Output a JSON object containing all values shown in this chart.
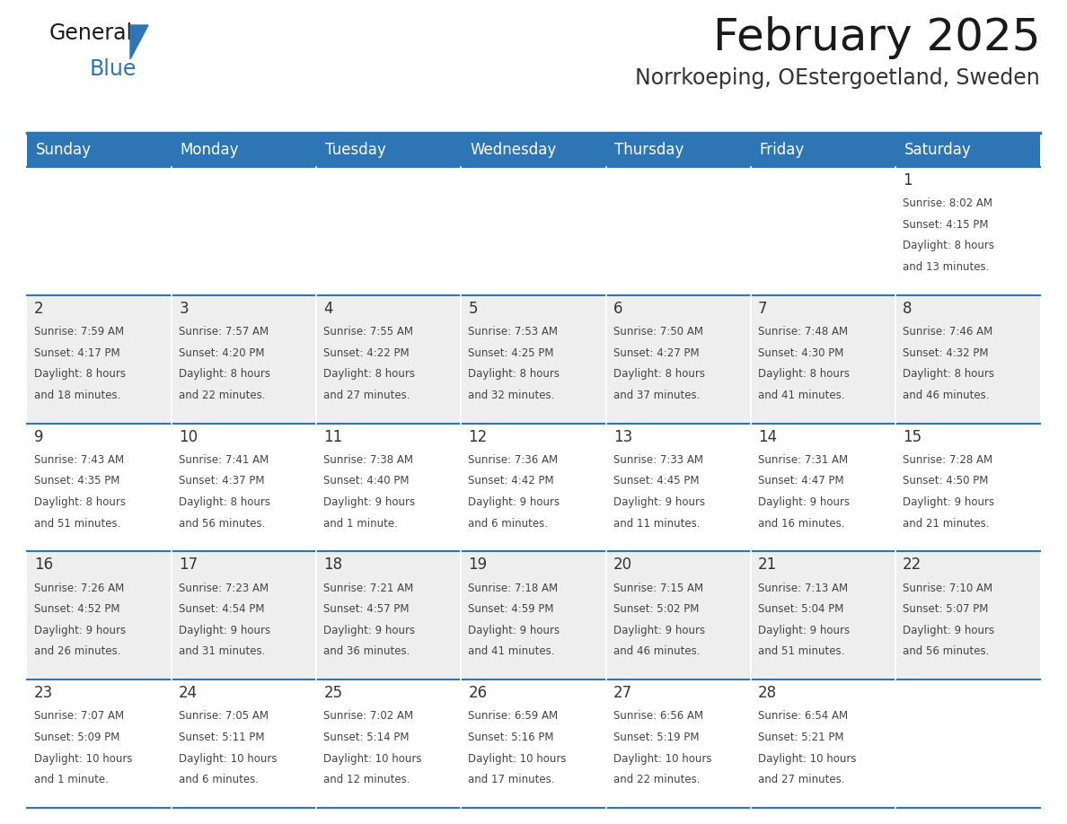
{
  "title": "February 2025",
  "subtitle": "Norrkoeping, OEstergoetland, Sweden",
  "days_of_week": [
    "Sunday",
    "Monday",
    "Tuesday",
    "Wednesday",
    "Thursday",
    "Friday",
    "Saturday"
  ],
  "header_bg": "#2e75b6",
  "header_text_color": "#ffffff",
  "row_bg": [
    "#ffffff",
    "#eeeeee",
    "#ffffff",
    "#eeeeee",
    "#ffffff"
  ],
  "border_color": "#2e75b6",
  "text_color": "#444444",
  "day_number_color": "#333333",
  "title_color": "#1a1a1a",
  "subtitle_color": "#333333",
  "calendar_data": [
    [
      null,
      null,
      null,
      null,
      null,
      null,
      {
        "day": 1,
        "sunrise": "8:02 AM",
        "sunset": "4:15 PM",
        "daylight": "8 hours",
        "daylight2": "and 13 minutes."
      }
    ],
    [
      {
        "day": 2,
        "sunrise": "7:59 AM",
        "sunset": "4:17 PM",
        "daylight": "8 hours",
        "daylight2": "and 18 minutes."
      },
      {
        "day": 3,
        "sunrise": "7:57 AM",
        "sunset": "4:20 PM",
        "daylight": "8 hours",
        "daylight2": "and 22 minutes."
      },
      {
        "day": 4,
        "sunrise": "7:55 AM",
        "sunset": "4:22 PM",
        "daylight": "8 hours",
        "daylight2": "and 27 minutes."
      },
      {
        "day": 5,
        "sunrise": "7:53 AM",
        "sunset": "4:25 PM",
        "daylight": "8 hours",
        "daylight2": "and 32 minutes."
      },
      {
        "day": 6,
        "sunrise": "7:50 AM",
        "sunset": "4:27 PM",
        "daylight": "8 hours",
        "daylight2": "and 37 minutes."
      },
      {
        "day": 7,
        "sunrise": "7:48 AM",
        "sunset": "4:30 PM",
        "daylight": "8 hours",
        "daylight2": "and 41 minutes."
      },
      {
        "day": 8,
        "sunrise": "7:46 AM",
        "sunset": "4:32 PM",
        "daylight": "8 hours",
        "daylight2": "and 46 minutes."
      }
    ],
    [
      {
        "day": 9,
        "sunrise": "7:43 AM",
        "sunset": "4:35 PM",
        "daylight": "8 hours",
        "daylight2": "and 51 minutes."
      },
      {
        "day": 10,
        "sunrise": "7:41 AM",
        "sunset": "4:37 PM",
        "daylight": "8 hours",
        "daylight2": "and 56 minutes."
      },
      {
        "day": 11,
        "sunrise": "7:38 AM",
        "sunset": "4:40 PM",
        "daylight": "9 hours",
        "daylight2": "and 1 minute."
      },
      {
        "day": 12,
        "sunrise": "7:36 AM",
        "sunset": "4:42 PM",
        "daylight": "9 hours",
        "daylight2": "and 6 minutes."
      },
      {
        "day": 13,
        "sunrise": "7:33 AM",
        "sunset": "4:45 PM",
        "daylight": "9 hours",
        "daylight2": "and 11 minutes."
      },
      {
        "day": 14,
        "sunrise": "7:31 AM",
        "sunset": "4:47 PM",
        "daylight": "9 hours",
        "daylight2": "and 16 minutes."
      },
      {
        "day": 15,
        "sunrise": "7:28 AM",
        "sunset": "4:50 PM",
        "daylight": "9 hours",
        "daylight2": "and 21 minutes."
      }
    ],
    [
      {
        "day": 16,
        "sunrise": "7:26 AM",
        "sunset": "4:52 PM",
        "daylight": "9 hours",
        "daylight2": "and 26 minutes."
      },
      {
        "day": 17,
        "sunrise": "7:23 AM",
        "sunset": "4:54 PM",
        "daylight": "9 hours",
        "daylight2": "and 31 minutes."
      },
      {
        "day": 18,
        "sunrise": "7:21 AM",
        "sunset": "4:57 PM",
        "daylight": "9 hours",
        "daylight2": "and 36 minutes."
      },
      {
        "day": 19,
        "sunrise": "7:18 AM",
        "sunset": "4:59 PM",
        "daylight": "9 hours",
        "daylight2": "and 41 minutes."
      },
      {
        "day": 20,
        "sunrise": "7:15 AM",
        "sunset": "5:02 PM",
        "daylight": "9 hours",
        "daylight2": "and 46 minutes."
      },
      {
        "day": 21,
        "sunrise": "7:13 AM",
        "sunset": "5:04 PM",
        "daylight": "9 hours",
        "daylight2": "and 51 minutes."
      },
      {
        "day": 22,
        "sunrise": "7:10 AM",
        "sunset": "5:07 PM",
        "daylight": "9 hours",
        "daylight2": "and 56 minutes."
      }
    ],
    [
      {
        "day": 23,
        "sunrise": "7:07 AM",
        "sunset": "5:09 PM",
        "daylight": "10 hours",
        "daylight2": "and 1 minute."
      },
      {
        "day": 24,
        "sunrise": "7:05 AM",
        "sunset": "5:11 PM",
        "daylight": "10 hours",
        "daylight2": "and 6 minutes."
      },
      {
        "day": 25,
        "sunrise": "7:02 AM",
        "sunset": "5:14 PM",
        "daylight": "10 hours",
        "daylight2": "and 12 minutes."
      },
      {
        "day": 26,
        "sunrise": "6:59 AM",
        "sunset": "5:16 PM",
        "daylight": "10 hours",
        "daylight2": "and 17 minutes."
      },
      {
        "day": 27,
        "sunrise": "6:56 AM",
        "sunset": "5:19 PM",
        "daylight": "10 hours",
        "daylight2": "and 22 minutes."
      },
      {
        "day": 28,
        "sunrise": "6:54 AM",
        "sunset": "5:21 PM",
        "daylight": "10 hours",
        "daylight2": "and 27 minutes."
      },
      null
    ]
  ]
}
